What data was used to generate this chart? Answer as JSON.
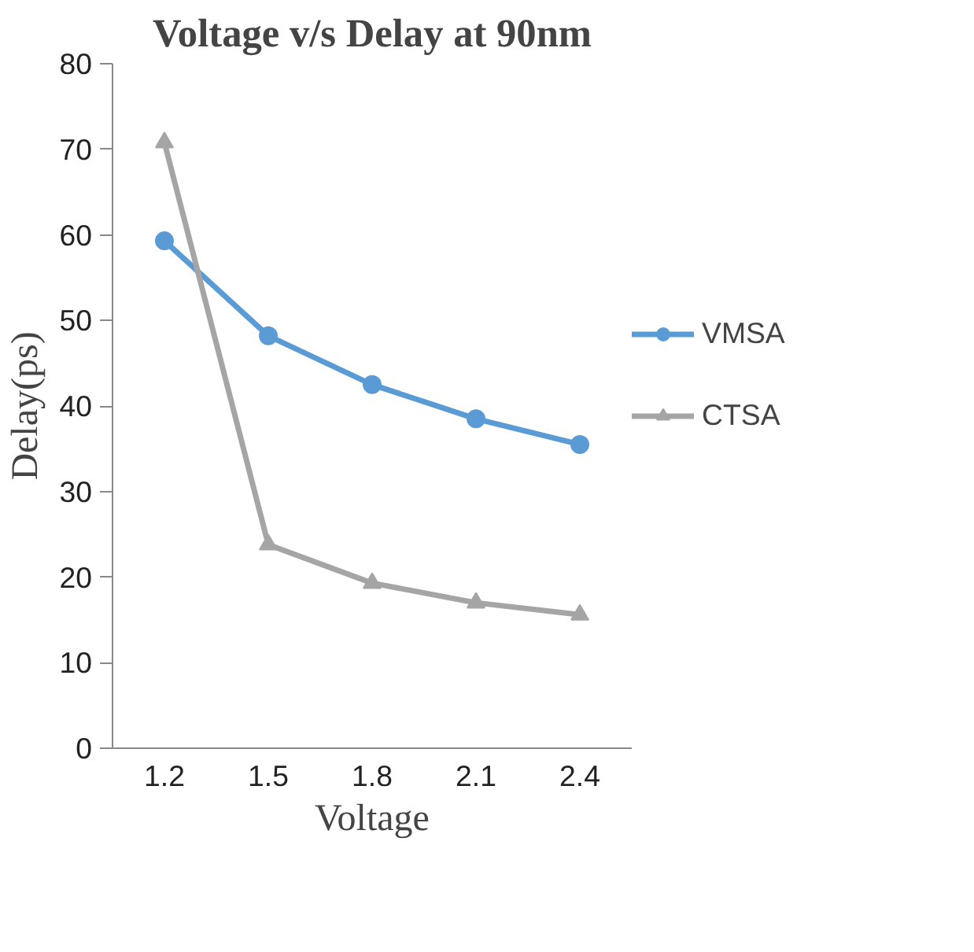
{
  "chart_data": {
    "type": "line",
    "title": "Voltage v/s Delay at 90nm",
    "xlabel": "Voltage",
    "ylabel": "Delay(ps)",
    "categories": [
      "1.2",
      "1.5",
      "1.8",
      "2.1",
      "2.4"
    ],
    "series": [
      {
        "name": "VMSA",
        "color": "#5b9bd5",
        "marker": "circle",
        "values": [
          59.3,
          48.2,
          42.5,
          38.5,
          35.5
        ]
      },
      {
        "name": "CTSA",
        "color": "#a5a5a5",
        "marker": "triangle",
        "values": [
          70.8,
          23.8,
          19.3,
          17.0,
          15.6
        ]
      }
    ],
    "ylim": [
      0,
      80
    ],
    "yticks": [
      0,
      10,
      20,
      30,
      40,
      50,
      60,
      70,
      80
    ],
    "grid": false,
    "legend": "right"
  }
}
